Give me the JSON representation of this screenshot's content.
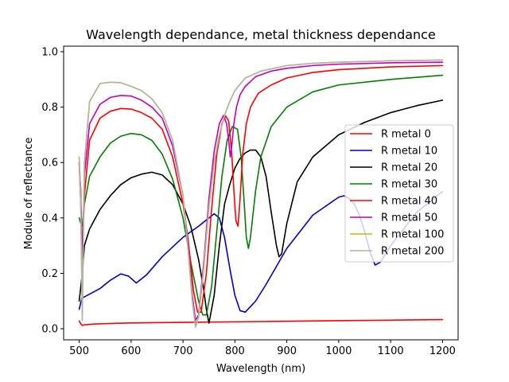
{
  "chart_data": {
    "type": "line",
    "title": "Wavelength dependance, metal thickness dependance",
    "xlabel": "Wavelength (nm)",
    "ylabel": "Module of reflectance",
    "xlim": [
      470,
      1230
    ],
    "ylim": [
      -0.04,
      1.02
    ],
    "xticks": [
      500,
      600,
      700,
      800,
      900,
      1000,
      1100,
      1200
    ],
    "yticks": [
      0.0,
      0.2,
      0.4,
      0.6,
      0.8,
      1.0
    ],
    "xtick_labels": [
      "500",
      "600",
      "700",
      "800",
      "900",
      "1000",
      "1100",
      "1200"
    ],
    "ytick_labels": [
      "0.0",
      "0.2",
      "0.4",
      "0.6",
      "0.8",
      "1.0"
    ],
    "grid": false,
    "legend_position": "center-right",
    "series": [
      {
        "name": "R metal 0",
        "color": "#ff0000",
        "x": [
          500,
          503,
          506,
          510,
          530,
          560,
          600,
          650,
          700,
          750,
          800,
          900,
          1000,
          1100,
          1200
        ],
        "y": [
          0.028,
          0.018,
          0.012,
          0.014,
          0.017,
          0.019,
          0.021,
          0.022,
          0.023,
          0.024,
          0.025,
          0.027,
          0.029,
          0.031,
          0.033
        ]
      },
      {
        "name": "R metal 10",
        "color": "#0000cc",
        "x": [
          500,
          505,
          510,
          520,
          540,
          560,
          580,
          595,
          610,
          630,
          660,
          700,
          730,
          750,
          760,
          770,
          780,
          790,
          800,
          810,
          820,
          840,
          860,
          900,
          950,
          1000,
          1010,
          1020,
          1030,
          1040,
          1050,
          1060,
          1070,
          1080,
          1100,
          1150,
          1200
        ],
        "y": [
          0.07,
          0.11,
          0.115,
          0.125,
          0.145,
          0.175,
          0.198,
          0.19,
          0.165,
          0.195,
          0.26,
          0.33,
          0.37,
          0.4,
          0.415,
          0.4,
          0.33,
          0.22,
          0.12,
          0.065,
          0.06,
          0.1,
          0.16,
          0.29,
          0.41,
          0.475,
          0.48,
          0.47,
          0.45,
          0.41,
          0.35,
          0.28,
          0.23,
          0.24,
          0.3,
          0.42,
          0.495
        ]
      },
      {
        "name": "R metal 20",
        "color": "#000000",
        "x": [
          500,
          503,
          506,
          510,
          520,
          540,
          560,
          580,
          600,
          620,
          640,
          660,
          680,
          700,
          715,
          730,
          740,
          745,
          750,
          760,
          770,
          780,
          790,
          800,
          810,
          820,
          830,
          840,
          850,
          860,
          870,
          880,
          885,
          890,
          900,
          920,
          950,
          1000,
          1050,
          1100,
          1150,
          1200
        ],
        "y": [
          0.1,
          0.15,
          0.2,
          0.3,
          0.36,
          0.43,
          0.48,
          0.52,
          0.545,
          0.558,
          0.565,
          0.555,
          0.52,
          0.45,
          0.37,
          0.25,
          0.14,
          0.07,
          0.02,
          0.12,
          0.3,
          0.45,
          0.52,
          0.58,
          0.615,
          0.635,
          0.645,
          0.645,
          0.62,
          0.55,
          0.42,
          0.3,
          0.26,
          0.27,
          0.38,
          0.53,
          0.62,
          0.7,
          0.745,
          0.78,
          0.805,
          0.825
        ]
      },
      {
        "name": "R metal 30",
        "color": "#008000",
        "x": [
          500,
          503,
          506,
          510,
          520,
          540,
          560,
          580,
          600,
          620,
          640,
          660,
          680,
          700,
          715,
          730,
          738,
          745,
          755,
          765,
          775,
          785,
          795,
          805,
          812,
          818,
          822,
          826,
          830,
          840,
          850,
          870,
          900,
          950,
          1000,
          1100,
          1200
        ],
        "y": [
          0.4,
          0.38,
          0.37,
          0.45,
          0.55,
          0.62,
          0.67,
          0.695,
          0.705,
          0.7,
          0.68,
          0.63,
          0.54,
          0.4,
          0.24,
          0.1,
          0.05,
          0.05,
          0.15,
          0.35,
          0.55,
          0.68,
          0.73,
          0.72,
          0.62,
          0.45,
          0.33,
          0.29,
          0.33,
          0.5,
          0.62,
          0.73,
          0.8,
          0.855,
          0.88,
          0.9,
          0.915
        ]
      },
      {
        "name": "R metal 40",
        "color": "#ff0000",
        "x": [
          500,
          503,
          506,
          510,
          520,
          540,
          560,
          580,
          600,
          620,
          640,
          660,
          680,
          700,
          710,
          720,
          728,
          735,
          745,
          755,
          765,
          775,
          782,
          788,
          794,
          798,
          802,
          806,
          810,
          815,
          822,
          830,
          845,
          870,
          900,
          950,
          1000,
          1100,
          1200
        ],
        "y": [
          0.6,
          0.45,
          0.25,
          0.48,
          0.68,
          0.76,
          0.785,
          0.795,
          0.793,
          0.78,
          0.76,
          0.72,
          0.62,
          0.45,
          0.32,
          0.14,
          0.06,
          0.06,
          0.2,
          0.43,
          0.63,
          0.74,
          0.768,
          0.75,
          0.63,
          0.5,
          0.39,
          0.37,
          0.47,
          0.63,
          0.74,
          0.8,
          0.85,
          0.88,
          0.905,
          0.925,
          0.935,
          0.945,
          0.95
        ]
      },
      {
        "name": "R metal 50",
        "color": "#bf00bf",
        "x": [
          500,
          503,
          506,
          510,
          520,
          540,
          560,
          580,
          600,
          620,
          640,
          660,
          680,
          700,
          710,
          718,
          724,
          730,
          740,
          750,
          760,
          770,
          778,
          784,
          788,
          791,
          794,
          798,
          803,
          810,
          820,
          840,
          870,
          900,
          950,
          1000,
          1100,
          1200
        ],
        "y": [
          0.6,
          0.5,
          0.25,
          0.55,
          0.74,
          0.81,
          0.835,
          0.842,
          0.84,
          0.825,
          0.8,
          0.76,
          0.66,
          0.48,
          0.3,
          0.12,
          0.03,
          0.05,
          0.24,
          0.47,
          0.64,
          0.74,
          0.77,
          0.74,
          0.68,
          0.62,
          0.66,
          0.74,
          0.8,
          0.845,
          0.875,
          0.91,
          0.93,
          0.94,
          0.95,
          0.955,
          0.96,
          0.962
        ]
      },
      {
        "name": "R metal 100",
        "color": "#bfbf00",
        "x": [
          500,
          503,
          506,
          510,
          520,
          540,
          560,
          580,
          600,
          620,
          640,
          660,
          680,
          700,
          710,
          718,
          724,
          730,
          740,
          750,
          760,
          770,
          780,
          790,
          800,
          820,
          850,
          900,
          950,
          1000,
          1100,
          1200
        ],
        "y": [
          0.62,
          0.45,
          0.05,
          0.6,
          0.82,
          0.885,
          0.89,
          0.888,
          0.875,
          0.86,
          0.83,
          0.78,
          0.68,
          0.48,
          0.28,
          0.1,
          0.01,
          0.04,
          0.22,
          0.44,
          0.6,
          0.7,
          0.77,
          0.82,
          0.86,
          0.905,
          0.93,
          0.95,
          0.958,
          0.962,
          0.967,
          0.97
        ]
      },
      {
        "name": "R metal 200",
        "color": "#b3b3a6",
        "x": [
          500,
          503,
          506,
          510,
          520,
          540,
          560,
          580,
          600,
          620,
          640,
          660,
          680,
          700,
          710,
          718,
          724,
          730,
          740,
          750,
          760,
          770,
          780,
          790,
          800,
          820,
          850,
          900,
          950,
          1000,
          1100,
          1200
        ],
        "y": [
          0.62,
          0.46,
          0.03,
          0.6,
          0.82,
          0.885,
          0.89,
          0.888,
          0.875,
          0.86,
          0.83,
          0.78,
          0.68,
          0.48,
          0.28,
          0.1,
          0.005,
          0.04,
          0.22,
          0.44,
          0.6,
          0.7,
          0.77,
          0.82,
          0.86,
          0.905,
          0.93,
          0.95,
          0.958,
          0.962,
          0.967,
          0.97
        ]
      }
    ]
  }
}
